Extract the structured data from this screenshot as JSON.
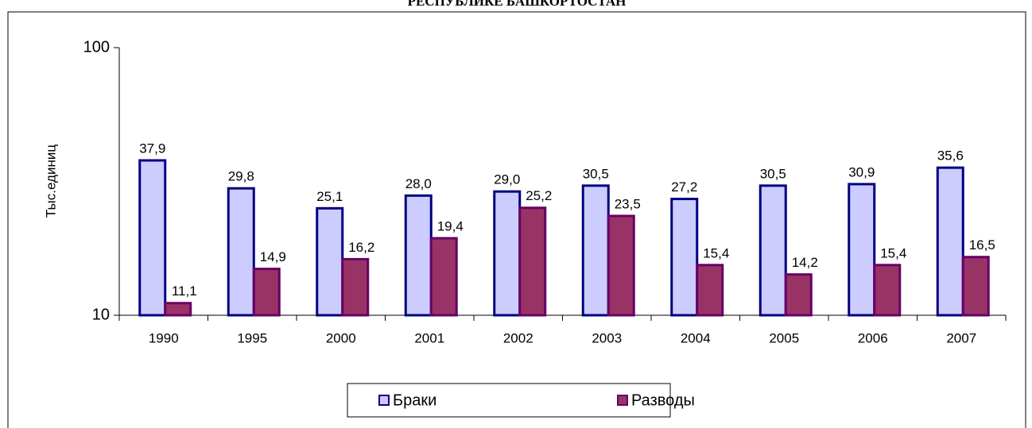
{
  "chart_data": {
    "type": "bar",
    "title": "РЕСПУБЛИКЕ БАШКОРТОСТАН",
    "y_label": "Тыс.единиц",
    "annotation": "`",
    "categories": [
      "1990",
      "1995",
      "2000",
      "2001",
      "2002",
      "2003",
      "2004",
      "2005",
      "2006",
      "2007"
    ],
    "series": [
      {
        "name": "Браки",
        "color": "#ccccff",
        "edge": "#000080",
        "values": [
          37.9,
          29.8,
          25.1,
          28.0,
          29.0,
          30.5,
          27.2,
          30.5,
          30.9,
          35.6
        ],
        "value_labels": [
          "37,9",
          "29,8",
          "25,1",
          "28,0",
          "29,0",
          "30,5",
          "27,2",
          "30,5",
          "30,9",
          "35,6"
        ]
      },
      {
        "name": "Разводы",
        "color": "#993366",
        "edge": "#660066",
        "values": [
          11.1,
          14.9,
          16.2,
          19.4,
          25.2,
          23.5,
          15.4,
          14.2,
          15.4,
          16.5
        ],
        "value_labels": [
          "11,1",
          "14,9",
          "16,2",
          "19,4",
          "25,2",
          "23,5",
          "15,4",
          "14,2",
          "15,4",
          "16,5"
        ]
      }
    ],
    "ylim": [
      10,
      100
    ],
    "yticks": [
      10,
      100
    ],
    "log_scale": true,
    "grid": false,
    "legend": "bottom"
  }
}
